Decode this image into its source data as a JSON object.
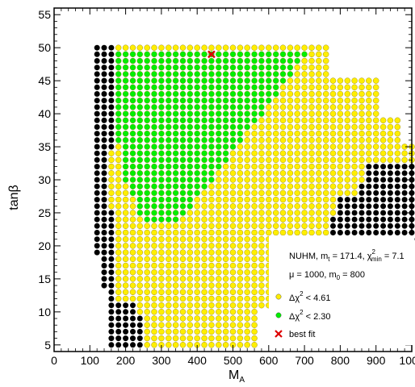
{
  "chart_data": {
    "type": "scatter",
    "title": "",
    "xlabel": "M",
    "xlabel_sub": "A",
    "ylabel": "tanβ",
    "xlim": [
      0,
      1000
    ],
    "ylim": [
      4,
      56
    ],
    "x_ticks": [
      0,
      100,
      200,
      300,
      400,
      500,
      600,
      700,
      800,
      900,
      1000
    ],
    "y_ticks": [
      5,
      10,
      15,
      20,
      25,
      30,
      35,
      40,
      45,
      50,
      55
    ],
    "grid": false,
    "legend_position": "bottom-right",
    "model_line": {
      "pre": "NUHM, m",
      "pre_sub": "t",
      "mid": " = 171.4, χ",
      "mid_sup": "2",
      "mid_sub": "min",
      "post": " = 7.1"
    },
    "params_line": {
      "pre": "μ = 1000, m",
      "pre_sub": "0",
      "post": " = 800"
    },
    "series": [
      {
        "name_pre": "Δχ",
        "name_sup": "2",
        "name_post": " < 4.61",
        "color": "#ffee00",
        "marker": "circle"
      },
      {
        "name_pre": "Δχ",
        "name_sup": "2",
        "name_post": " < 2.30",
        "color": "#00ee00",
        "marker": "circle"
      },
      {
        "name": "best fit",
        "color": "#dd0000",
        "marker": "x",
        "points": [
          [
            440,
            49
          ]
        ]
      }
    ],
    "scan_grid": {
      "x_start": 120,
      "x_step": 20,
      "x_end": 1000,
      "y_start": 5,
      "y_step": 1,
      "y_end": 50
    },
    "region_colors": {
      "excluded": "#000000",
      "band_4_61": "#ffee00",
      "band_2_30": "#00ee00"
    }
  }
}
